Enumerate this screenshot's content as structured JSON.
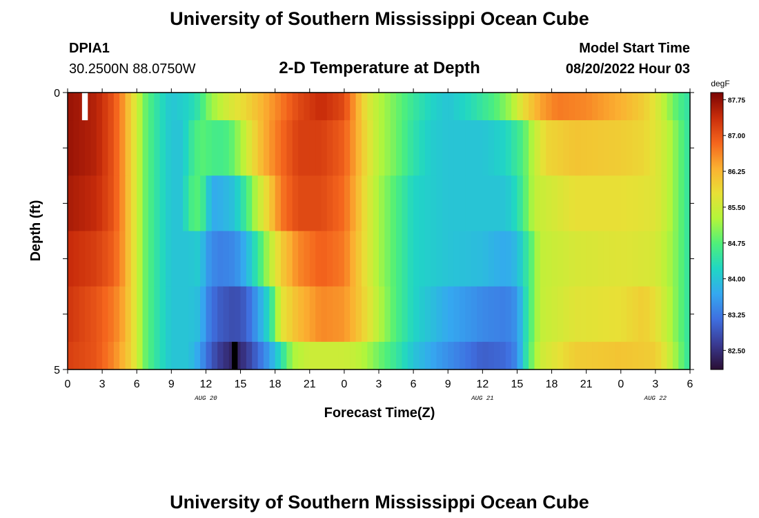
{
  "page": {
    "title": "University of Southern Mississippi Ocean Cube",
    "footer_title": "University of Southern Mississippi Ocean Cube",
    "station": "DPIA1",
    "coords": "30.2500N  88.0750W",
    "plot_title": "2-D Temperature at Depth",
    "model_start_label": "Model Start Time",
    "model_start_value": "08/20/2022 Hour 03"
  },
  "chart_data": {
    "type": "heatmap",
    "xlabel": "Forecast Time(Z)",
    "ylabel": "Depth (ft)",
    "x_start_hour": 0,
    "x_end_hour": 54,
    "x_tick_hours": [
      0,
      3,
      6,
      9,
      12,
      15,
      18,
      21,
      24,
      27,
      30,
      33,
      36,
      39,
      42,
      45,
      48,
      51,
      54
    ],
    "x_tick_labels": [
      "0",
      "3",
      "6",
      "9",
      "12",
      "15",
      "18",
      "21",
      "0",
      "3",
      "6",
      "9",
      "12",
      "15",
      "18",
      "21",
      "0",
      "3",
      "6"
    ],
    "date_labels": [
      {
        "hour": 12,
        "label": "AUG 20"
      },
      {
        "hour": 36,
        "label": "AUG 21"
      },
      {
        "hour": 51,
        "label": "AUG 22"
      }
    ],
    "y_tick_labels": [
      {
        "depth": 0,
        "label": "0"
      },
      {
        "depth": 5,
        "label": "5"
      }
    ],
    "ylim": [
      0,
      5
    ],
    "depth_minor_ticks": [
      1,
      2,
      3,
      4
    ],
    "depth_bands": [
      [
        0,
        0.5
      ],
      [
        0.5,
        1.5
      ],
      [
        1.5,
        2.5
      ],
      [
        2.5,
        3.5
      ],
      [
        3.5,
        4.5
      ],
      [
        4.5,
        5
      ]
    ],
    "colorbar": {
      "unit": "degF",
      "min": 82.1,
      "max": 87.9,
      "tick_values": [
        82.5,
        83.25,
        84.0,
        84.75,
        85.5,
        86.25,
        87.0,
        87.75
      ],
      "tick_labels": [
        "82.50",
        "83.25",
        "84.00",
        "84.75",
        "85.50",
        "86.25",
        "87.00",
        "87.75"
      ],
      "colormap": [
        "#2a0e33",
        "#3a3a92",
        "#3f6fe0",
        "#35a8f0",
        "#20d6c4",
        "#4ff07a",
        "#b4f53a",
        "#e8e036",
        "#fbb031",
        "#f4651d",
        "#c92d0b",
        "#7a0403"
      ]
    },
    "bands": [
      {
        "depth": 0,
        "keys": [
          [
            0,
            87.7
          ],
          [
            2.5,
            87.5
          ],
          [
            4,
            87.0
          ],
          [
            5,
            86.4
          ],
          [
            5.5,
            85.9
          ],
          [
            6,
            85.6
          ],
          [
            6.5,
            85.0
          ],
          [
            7.5,
            84.5
          ],
          [
            9,
            84.0
          ],
          [
            10.5,
            84.2
          ],
          [
            11.5,
            84.5
          ],
          [
            12,
            84.9
          ],
          [
            13,
            85.3
          ],
          [
            14,
            85.6
          ],
          [
            15.5,
            85.9
          ],
          [
            17,
            86.3
          ],
          [
            18.5,
            86.7
          ],
          [
            20,
            87.1
          ],
          [
            22,
            87.4
          ],
          [
            24,
            87.1
          ],
          [
            25,
            86.4
          ],
          [
            26,
            85.7
          ],
          [
            27,
            85.3
          ],
          [
            28.5,
            84.9
          ],
          [
            30,
            84.5
          ],
          [
            31.5,
            84.2
          ],
          [
            33,
            84.0
          ],
          [
            35,
            84.3
          ],
          [
            37,
            84.7
          ],
          [
            38.5,
            85.2
          ],
          [
            39.5,
            85.8
          ],
          [
            41,
            86.4
          ],
          [
            42.5,
            86.7
          ],
          [
            45,
            86.6
          ],
          [
            48,
            86.3
          ],
          [
            50,
            86.0
          ],
          [
            51,
            85.7
          ],
          [
            52,
            85.2
          ],
          [
            53,
            84.7
          ],
          [
            54,
            84.4
          ]
        ]
      },
      {
        "depth": 1,
        "keys": [
          [
            0,
            87.7
          ],
          [
            2.5,
            87.5
          ],
          [
            4,
            87.0
          ],
          [
            5,
            86.4
          ],
          [
            5.5,
            85.9
          ],
          [
            6,
            85.6
          ],
          [
            6.5,
            85.0
          ],
          [
            7.5,
            84.5
          ],
          [
            9,
            84.0
          ],
          [
            10,
            84.0
          ],
          [
            10.5,
            84.4
          ],
          [
            11.5,
            84.8
          ],
          [
            13,
            84.6
          ],
          [
            14,
            84.7
          ],
          [
            15,
            85.2
          ],
          [
            16,
            85.8
          ],
          [
            17,
            86.3
          ],
          [
            18.5,
            86.8
          ],
          [
            20,
            87.2
          ],
          [
            22,
            87.2
          ],
          [
            24,
            86.9
          ],
          [
            25,
            86.4
          ],
          [
            26,
            85.8
          ],
          [
            27,
            85.3
          ],
          [
            28.5,
            84.9
          ],
          [
            30,
            84.4
          ],
          [
            31.5,
            84.1
          ],
          [
            33,
            84.0
          ],
          [
            36,
            84.0
          ],
          [
            38,
            84.2
          ],
          [
            39.5,
            84.7
          ],
          [
            40.5,
            85.4
          ],
          [
            41.5,
            85.9
          ],
          [
            44,
            86.1
          ],
          [
            48,
            86.0
          ],
          [
            50,
            85.9
          ],
          [
            51,
            85.7
          ],
          [
            52,
            85.4
          ],
          [
            53,
            84.9
          ],
          [
            54,
            84.4
          ]
        ]
      },
      {
        "depth": 2,
        "keys": [
          [
            0,
            87.6
          ],
          [
            2.5,
            87.4
          ],
          [
            4,
            87.0
          ],
          [
            5,
            86.4
          ],
          [
            5.5,
            85.9
          ],
          [
            6,
            85.6
          ],
          [
            6.5,
            85.0
          ],
          [
            7.5,
            84.5
          ],
          [
            9,
            84.0
          ],
          [
            10,
            84.0
          ],
          [
            10.5,
            84.6
          ],
          [
            11.5,
            84.8
          ],
          [
            12,
            84.3
          ],
          [
            12.5,
            83.7
          ],
          [
            13.5,
            83.8
          ],
          [
            14.5,
            84.0
          ],
          [
            15.5,
            84.6
          ],
          [
            16.5,
            85.4
          ],
          [
            17.5,
            86.0
          ],
          [
            18.5,
            86.7
          ],
          [
            20,
            87.1
          ],
          [
            22,
            87.1
          ],
          [
            24,
            86.8
          ],
          [
            25,
            86.3
          ],
          [
            26,
            85.7
          ],
          [
            27,
            85.2
          ],
          [
            28.5,
            84.7
          ],
          [
            30,
            84.2
          ],
          [
            33,
            84.0
          ],
          [
            38,
            84.0
          ],
          [
            39,
            84.3
          ],
          [
            40,
            85.0
          ],
          [
            40.5,
            85.4
          ],
          [
            44,
            85.8
          ],
          [
            48,
            85.8
          ],
          [
            51,
            85.7
          ],
          [
            52,
            85.4
          ],
          [
            53,
            84.9
          ],
          [
            54,
            84.4
          ]
        ]
      },
      {
        "depth": 3,
        "keys": [
          [
            0,
            87.4
          ],
          [
            2.5,
            87.2
          ],
          [
            4,
            86.9
          ],
          [
            5,
            86.4
          ],
          [
            5.5,
            85.9
          ],
          [
            6,
            85.6
          ],
          [
            6.5,
            85.0
          ],
          [
            7.5,
            84.5
          ],
          [
            9,
            84.0
          ],
          [
            10.5,
            84.0
          ],
          [
            11.5,
            84.1
          ],
          [
            12,
            83.6
          ],
          [
            13,
            83.3
          ],
          [
            14.5,
            83.4
          ],
          [
            15.5,
            83.8
          ],
          [
            16.5,
            84.5
          ],
          [
            17.5,
            85.3
          ],
          [
            18.5,
            86.0
          ],
          [
            20,
            86.6
          ],
          [
            22,
            86.9
          ],
          [
            24,
            86.7
          ],
          [
            25,
            86.2
          ],
          [
            26,
            85.7
          ],
          [
            27,
            85.2
          ],
          [
            28.5,
            84.7
          ],
          [
            30,
            84.2
          ],
          [
            33,
            84.0
          ],
          [
            36,
            83.9
          ],
          [
            38,
            83.7
          ],
          [
            39,
            83.9
          ],
          [
            40,
            84.6
          ],
          [
            41,
            85.4
          ],
          [
            44,
            85.6
          ],
          [
            48,
            85.7
          ],
          [
            51,
            85.6
          ],
          [
            52,
            85.3
          ],
          [
            53,
            84.9
          ],
          [
            54,
            84.4
          ]
        ]
      },
      {
        "depth": 4,
        "keys": [
          [
            0,
            87.3
          ],
          [
            2.5,
            87.0
          ],
          [
            4,
            86.7
          ],
          [
            5,
            86.3
          ],
          [
            5.5,
            85.9
          ],
          [
            6,
            85.6
          ],
          [
            6.5,
            85.0
          ],
          [
            7.5,
            84.5
          ],
          [
            9,
            84.0
          ],
          [
            10.5,
            84.0
          ],
          [
            11.5,
            83.9
          ],
          [
            12,
            83.4
          ],
          [
            13,
            83.0
          ],
          [
            14.5,
            82.8
          ],
          [
            15.5,
            83.0
          ],
          [
            16.5,
            83.6
          ],
          [
            17.5,
            84.3
          ],
          [
            18,
            84.9
          ],
          [
            18.5,
            85.7
          ],
          [
            20,
            86.2
          ],
          [
            22,
            86.6
          ],
          [
            24,
            86.5
          ],
          [
            25,
            86.2
          ],
          [
            26,
            85.8
          ],
          [
            27,
            85.3
          ],
          [
            28.5,
            84.7
          ],
          [
            30,
            84.2
          ],
          [
            33,
            83.7
          ],
          [
            36,
            83.4
          ],
          [
            38,
            83.3
          ],
          [
            39,
            83.5
          ],
          [
            40,
            84.6
          ],
          [
            41,
            85.4
          ],
          [
            44,
            85.7
          ],
          [
            48,
            85.8
          ],
          [
            50,
            86.0
          ],
          [
            51,
            85.8
          ],
          [
            52,
            85.4
          ],
          [
            53,
            84.9
          ],
          [
            54,
            84.4
          ]
        ]
      },
      {
        "depth": 5,
        "keys": [
          [
            0,
            87.2
          ],
          [
            2.5,
            87.0
          ],
          [
            4,
            86.6
          ],
          [
            5,
            86.2
          ],
          [
            5.5,
            85.9
          ],
          [
            6,
            85.6
          ],
          [
            6.5,
            85.0
          ],
          [
            7.5,
            84.5
          ],
          [
            9,
            84.0
          ],
          [
            10.5,
            84.0
          ],
          [
            11.5,
            83.6
          ],
          [
            12,
            83.2
          ],
          [
            13,
            82.7
          ],
          [
            14.5,
            82.3
          ],
          [
            15.5,
            82.6
          ],
          [
            16.5,
            83.1
          ],
          [
            17.5,
            83.6
          ],
          [
            18.5,
            84.3
          ],
          [
            19.5,
            85.2
          ],
          [
            21,
            85.5
          ],
          [
            24,
            85.5
          ],
          [
            25,
            85.4
          ],
          [
            26,
            85.2
          ],
          [
            27,
            84.9
          ],
          [
            28.5,
            84.5
          ],
          [
            30,
            84.0
          ],
          [
            32,
            83.6
          ],
          [
            34,
            83.3
          ],
          [
            36,
            83.0
          ],
          [
            38,
            83.1
          ],
          [
            39,
            83.4
          ],
          [
            40,
            84.7
          ],
          [
            41,
            85.5
          ],
          [
            44,
            86.0
          ],
          [
            48,
            86.1
          ],
          [
            51,
            86.0
          ],
          [
            52,
            85.6
          ],
          [
            53,
            85.0
          ],
          [
            54,
            84.4
          ]
        ]
      }
    ],
    "missing_cells": [
      {
        "hour": 1.5,
        "depth": 0,
        "color": "#ffffff"
      },
      {
        "hour": 14.5,
        "depth": 5,
        "color": "#000000"
      }
    ]
  }
}
